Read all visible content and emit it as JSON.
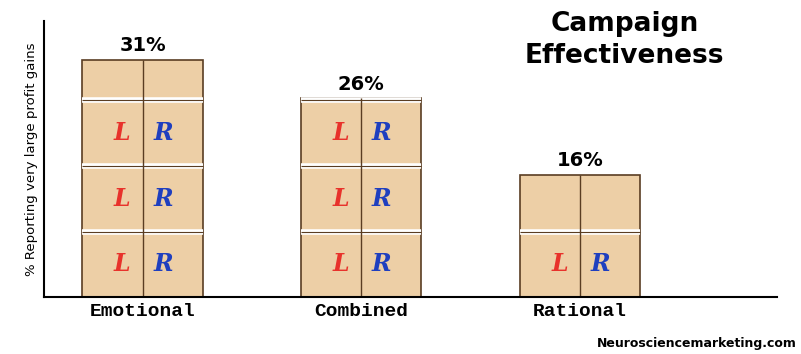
{
  "chart_data": {
    "type": "bar",
    "title": "Campaign\nEffectiveness",
    "y_label": "% Reporting very large profit gains",
    "categories": [
      "Emotional",
      "Combined",
      "Rational"
    ],
    "values": [
      31,
      26,
      16
    ],
    "value_labels": [
      "31%",
      "26%",
      "16%"
    ],
    "data_labels": true,
    "color": "#edcfa6",
    "ylim": [
      0,
      36
    ],
    "yticks": [],
    "tick_labels": "x",
    "grid": false,
    "annotations": [
      "L",
      "R"
    ],
    "source": "Neurosciencemarketing.com"
  }
}
